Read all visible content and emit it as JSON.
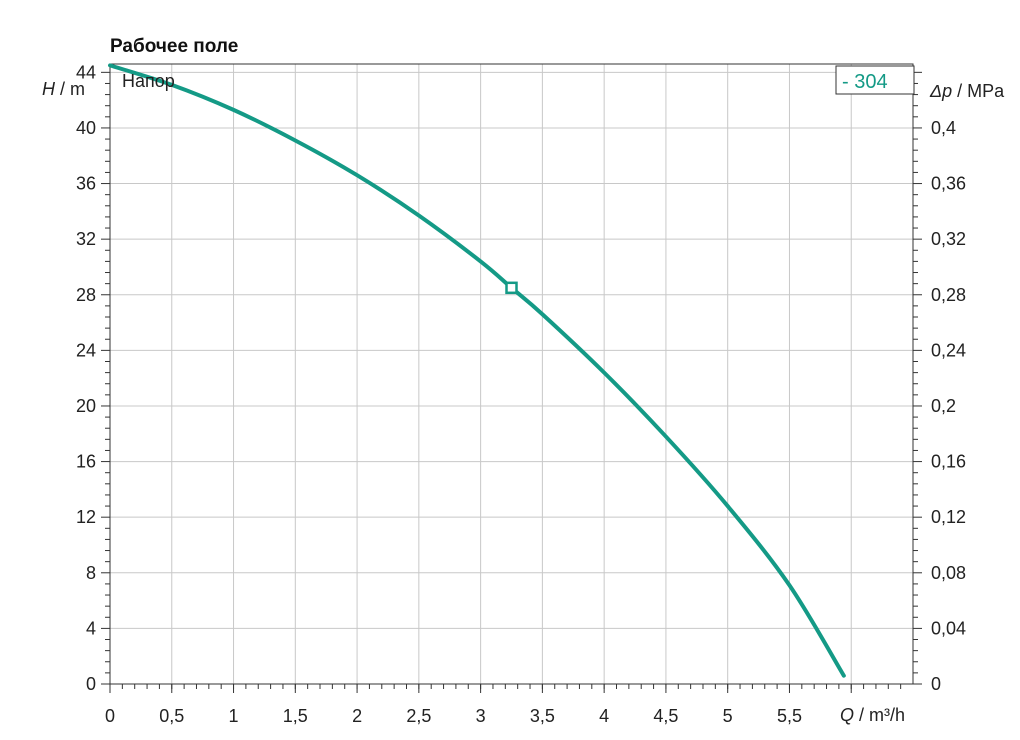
{
  "chart_data": {
    "type": "line",
    "title": "Рабочее поле",
    "series_label": "Напор",
    "legend_label": "- 304",
    "accent_color": "#149a86",
    "y_left": {
      "symbol": "H",
      "unit": " / m",
      "ylim": [
        0,
        44.6
      ],
      "ticks": [
        0,
        4,
        8,
        12,
        16,
        20,
        24,
        28,
        32,
        36,
        40,
        44
      ],
      "tick_labels": [
        "0",
        "4",
        "8",
        "12",
        "16",
        "20",
        "24",
        "28",
        "32",
        "36",
        "40",
        "44"
      ]
    },
    "y_right": {
      "symbol": "Δp",
      "unit": " / MPa",
      "ticks": [
        0,
        0.04,
        0.08,
        0.12,
        0.16,
        0.2,
        0.24,
        0.28,
        0.32,
        0.36,
        0.4
      ],
      "tick_labels": [
        "0",
        "0,04",
        "0,08",
        "0,12",
        "0,16",
        "0,2",
        "0,24",
        "0,28",
        "0,32",
        "0,36",
        "0,4"
      ]
    },
    "x_axis": {
      "symbol": "Q",
      "unit": " / m³/h",
      "xlim": [
        0,
        6.5
      ],
      "ticks": [
        0,
        0.5,
        1,
        1.5,
        2,
        2.5,
        3,
        3.5,
        4,
        4.5,
        5,
        5.5
      ],
      "tick_labels": [
        "0",
        "0,5",
        "1",
        "1,5",
        "2",
        "2,5",
        "3",
        "3,5",
        "4",
        "4,5",
        "5",
        "5,5"
      ]
    },
    "grid": true,
    "series": [
      {
        "x": [
          0,
          0.5,
          1,
          1.5,
          2,
          2.5,
          3,
          3.25,
          3.5,
          4,
          4.5,
          5,
          5.5,
          5.94
        ],
        "y": [
          44.5,
          43.1,
          41.3,
          39.1,
          36.6,
          33.7,
          30.4,
          28.5,
          26.6,
          22.4,
          17.8,
          12.8,
          7.1,
          0.6
        ]
      }
    ],
    "operating_point": {
      "x": 3.25,
      "y": 28.5
    }
  }
}
